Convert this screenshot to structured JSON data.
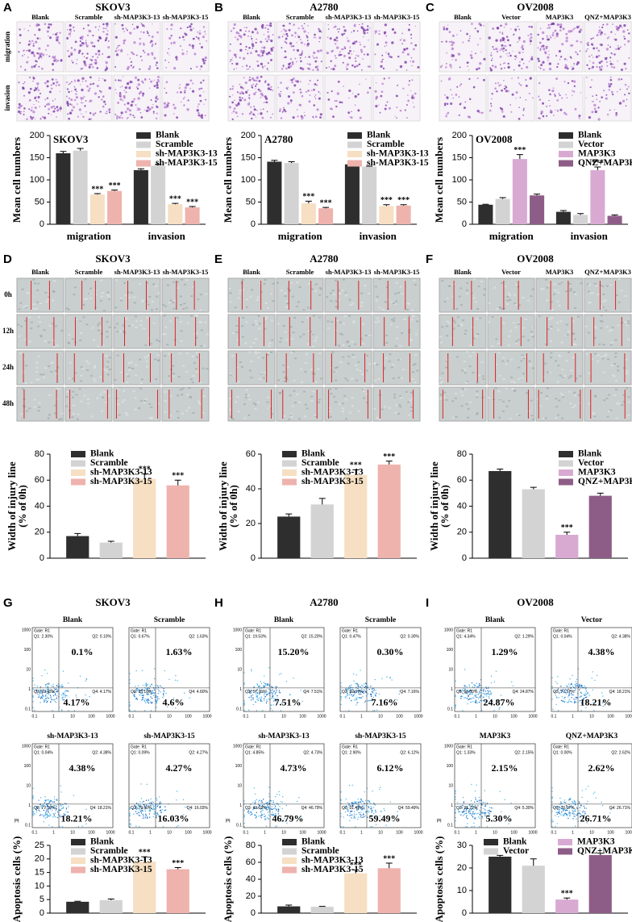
{
  "chart_data": [
    {
      "type": "bar",
      "title": "SKOV3",
      "ylabel": "Mean cell numbers",
      "categories": [
        "migration",
        "invasion"
      ],
      "ylim": [
        0,
        200
      ],
      "yticks": [
        0,
        50,
        100,
        150,
        200
      ],
      "legend": "upper right",
      "series": [
        {
          "name": "Blank",
          "color": "#2e2e2e",
          "values": [
            160,
            122
          ],
          "errors": [
            4,
            3
          ],
          "annotations": [
            null,
            null
          ]
        },
        {
          "name": "Scramble",
          "color": "#d3d3d3",
          "values": [
            166,
            132
          ],
          "errors": [
            5,
            3
          ],
          "annotations": [
            null,
            null
          ]
        },
        {
          "name": "sh-MAP3K3-13",
          "color": "#f6dfc2",
          "values": [
            67,
            45
          ],
          "errors": [
            2,
            2
          ],
          "annotations": [
            "***",
            "***"
          ]
        },
        {
          "name": "sh-MAP3K3-15",
          "color": "#eeb3ad",
          "values": [
            75,
            38
          ],
          "errors": [
            2,
            2
          ],
          "annotations": [
            "***",
            "***"
          ]
        }
      ]
    },
    {
      "type": "bar",
      "title": "A2780",
      "ylabel": "Mean cell numbers",
      "categories": [
        "migration",
        "invasion"
      ],
      "ylim": [
        0,
        200
      ],
      "yticks": [
        0,
        50,
        100,
        150,
        200
      ],
      "legend": "upper right",
      "series": [
        {
          "name": "Blank",
          "color": "#2e2e2e",
          "values": [
            141,
            135
          ],
          "errors": [
            3,
            6
          ],
          "annotations": [
            null,
            null
          ]
        },
        {
          "name": "Scramble",
          "color": "#d3d3d3",
          "values": [
            138,
            130
          ],
          "errors": [
            3,
            1
          ],
          "annotations": [
            null,
            null
          ]
        },
        {
          "name": "sh-MAP3K3-13",
          "color": "#f6dfc2",
          "values": [
            47,
            41
          ],
          "errors": [
            5,
            3
          ],
          "annotations": [
            "***",
            "***"
          ]
        },
        {
          "name": "sh-MAP3K3-15",
          "color": "#eeb3ad",
          "values": [
            36,
            42
          ],
          "errors": [
            2,
            2
          ],
          "annotations": [
            "***",
            "***"
          ]
        }
      ]
    },
    {
      "type": "bar",
      "title": "OV2008",
      "ylabel": "Mean cell numbers",
      "categories": [
        "migration",
        "invasion"
      ],
      "ylim": [
        0,
        200
      ],
      "yticks": [
        0,
        50,
        100,
        150,
        200
      ],
      "legend": "upper right",
      "series": [
        {
          "name": "Blank",
          "color": "#2e2e2e",
          "values": [
            44,
            28
          ],
          "errors": [
            1,
            3
          ],
          "annotations": [
            null,
            null
          ]
        },
        {
          "name": "Vector",
          "color": "#d3d3d3",
          "values": [
            57,
            21
          ],
          "errors": [
            3,
            3
          ],
          "annotations": [
            null,
            null
          ]
        },
        {
          "name": "MAP3K3",
          "color": "#d8aad2",
          "values": [
            147,
            122
          ],
          "errors": [
            10,
            7
          ],
          "annotations": [
            "***",
            "***"
          ]
        },
        {
          "name": "QNZ+MAP3K3",
          "color": "#8e5d87",
          "values": [
            65,
            19
          ],
          "errors": [
            3,
            2
          ],
          "annotations": [
            null,
            null
          ]
        }
      ]
    },
    {
      "type": "bar",
      "ylabel": [
        "Width of injury line",
        "(% of 0h)"
      ],
      "categories": [
        null
      ],
      "ylim": [
        0,
        80
      ],
      "yticks": [
        0,
        20,
        40,
        60,
        80
      ],
      "legend": "upper left",
      "series": [
        {
          "name": "Blank",
          "color": "#2e2e2e",
          "values": [
            17
          ],
          "errors": [
            2
          ],
          "annotations": [
            null
          ]
        },
        {
          "name": "Scramble",
          "color": "#d3d3d3",
          "values": [
            12
          ],
          "errors": [
            1
          ],
          "annotations": [
            null
          ]
        },
        {
          "name": "sh-MAP3K3-13",
          "color": "#f6dfc2",
          "values": [
            61
          ],
          "errors": [
            4
          ],
          "annotations": [
            "***"
          ]
        },
        {
          "name": "sh-MAP3K3-15",
          "color": "#eeb3ad",
          "values": [
            56
          ],
          "errors": [
            4
          ],
          "annotations": [
            "***"
          ]
        }
      ]
    },
    {
      "type": "bar",
      "ylabel": [
        "Width of injury line",
        "(% of 0h)"
      ],
      "categories": [
        null
      ],
      "ylim": [
        0,
        60
      ],
      "yticks": [
        0,
        20,
        40,
        60
      ],
      "legend": "upper left",
      "series": [
        {
          "name": "Blank",
          "color": "#2e2e2e",
          "values": [
            24
          ],
          "errors": [
            1.5
          ],
          "annotations": [
            null
          ]
        },
        {
          "name": "Scramble",
          "color": "#d3d3d3",
          "values": [
            31
          ],
          "errors": [
            3.5
          ],
          "annotations": [
            null
          ]
        },
        {
          "name": "sh-MAP3K3-13",
          "color": "#f6dfc2",
          "values": [
            48
          ],
          "errors": [
            3
          ],
          "annotations": [
            "***"
          ]
        },
        {
          "name": "sh-MAP3K3-15",
          "color": "#eeb3ad",
          "values": [
            54
          ],
          "errors": [
            2
          ],
          "annotations": [
            "***"
          ]
        }
      ]
    },
    {
      "type": "bar",
      "ylabel": [
        "Width of injury line",
        "(% of 0h)"
      ],
      "categories": [
        null
      ],
      "ylim": [
        0,
        80
      ],
      "yticks": [
        0,
        20,
        40,
        60,
        80
      ],
      "legend": "upper right",
      "series": [
        {
          "name": "Blank",
          "color": "#2e2e2e",
          "values": [
            67
          ],
          "errors": [
            1.5
          ],
          "annotations": [
            null
          ]
        },
        {
          "name": "Vector",
          "color": "#d3d3d3",
          "values": [
            53
          ],
          "errors": [
            1.5
          ],
          "annotations": [
            null
          ]
        },
        {
          "name": "MAP3K3",
          "color": "#d8aad2",
          "values": [
            18
          ],
          "errors": [
            2
          ],
          "annotations": [
            "***"
          ]
        },
        {
          "name": "QNZ+MAP3K3",
          "color": "#8e5d87",
          "values": [
            48
          ],
          "errors": [
            2
          ],
          "annotations": [
            null
          ]
        }
      ]
    },
    {
      "type": "bar",
      "ylabel": "Apoptosis cells (%)",
      "categories": [
        null
      ],
      "ylim": [
        0,
        25
      ],
      "yticks": [
        0,
        5,
        10,
        15,
        20,
        25
      ],
      "legend": "upper left",
      "series": [
        {
          "name": "Blank",
          "color": "#2e2e2e",
          "values": [
            4.2
          ],
          "errors": [
            0.2
          ],
          "annotations": [
            null
          ]
        },
        {
          "name": "Scramble",
          "color": "#d3d3d3",
          "values": [
            4.8
          ],
          "errors": [
            0.4
          ],
          "annotations": [
            null
          ]
        },
        {
          "name": "sh-MAP3K3-13",
          "color": "#f6dfc2",
          "values": [
            19
          ],
          "errors": [
            1.8
          ],
          "annotations": [
            "***"
          ]
        },
        {
          "name": "sh-MAP3K3-15",
          "color": "#eeb3ad",
          "values": [
            16.2
          ],
          "errors": [
            0.6
          ],
          "annotations": [
            "***"
          ]
        }
      ]
    },
    {
      "type": "bar",
      "ylabel": "Apoptosis cells (%)",
      "categories": [
        null
      ],
      "ylim": [
        0,
        80
      ],
      "yticks": [
        0,
        20,
        40,
        60,
        80
      ],
      "legend": "upper left",
      "series": [
        {
          "name": "Blank",
          "color": "#2e2e2e",
          "values": [
            8
          ],
          "errors": [
            1.5
          ],
          "annotations": [
            null
          ]
        },
        {
          "name": "Scramble",
          "color": "#d3d3d3",
          "values": [
            7.5
          ],
          "errors": [
            0.5
          ],
          "annotations": [
            null
          ]
        },
        {
          "name": "sh-MAP3K3-13",
          "color": "#f6dfc2",
          "values": [
            47
          ],
          "errors": [
            4
          ],
          "annotations": [
            "***"
          ]
        },
        {
          "name": "sh-MAP3K3-15",
          "color": "#eeb3ad",
          "values": [
            53
          ],
          "errors": [
            6
          ],
          "annotations": [
            "***"
          ]
        }
      ]
    },
    {
      "type": "bar",
      "ylabel": "Apoptosis cells (%)",
      "categories": [
        null
      ],
      "ylim": [
        0,
        30
      ],
      "yticks": [
        0,
        10,
        20,
        30
      ],
      "legend": "upper center",
      "legend_columns": 2,
      "series": [
        {
          "name": "Blank",
          "color": "#2e2e2e",
          "values": [
            25
          ],
          "errors": [
            0.6
          ],
          "annotations": [
            null
          ]
        },
        {
          "name": "Vector",
          "color": "#d3d3d3",
          "values": [
            21
          ],
          "errors": [
            3
          ],
          "annotations": [
            null
          ]
        },
        {
          "name": "MAP3K3",
          "color": "#d8aad2",
          "values": [
            6
          ],
          "errors": [
            0.7
          ],
          "annotations": [
            "***"
          ]
        },
        {
          "name": "QNZ+MAP3K3",
          "color": "#8e5d87",
          "values": [
            25.7
          ],
          "errors": [
            0.8
          ],
          "annotations": [
            null
          ]
        }
      ]
    }
  ],
  "panels": [
    {
      "letter": "A",
      "title": "SKOV3",
      "columns": [
        "Blank",
        "Scramble",
        "sh-MAP3K3-13",
        "sh-MAP3K3-15"
      ],
      "rows": [
        "migration",
        "invasion"
      ]
    },
    {
      "letter": "B",
      "title": "A2780",
      "columns": [
        "Blank",
        "Scramble",
        "sh-MAP3K3-13",
        "sh-MAP3K3-15"
      ]
    },
    {
      "letter": "C",
      "title": "OV2008",
      "columns": [
        "Blank",
        "Vector",
        "MAP3K3",
        "QNZ+MAP3K3"
      ]
    },
    {
      "letter": "D",
      "title": "SKOV3",
      "columns": [
        "Blank",
        "Scramble",
        "sh-MAP3K3-13",
        "sh-MAP3K3-15"
      ],
      "rows": [
        "0h",
        "12h",
        "24h",
        "48h"
      ]
    },
    {
      "letter": "E",
      "title": "A2780",
      "columns": [
        "Blank",
        "Scramble",
        "sh-MAP3K3-13",
        "sh-MAP3K3-15"
      ]
    },
    {
      "letter": "F",
      "title": "OV2008",
      "columns": [
        "Blank",
        "Vector",
        "MAP3K3",
        "QNZ+MAP3K3"
      ]
    },
    {
      "letter": "G",
      "title": "SKOV3",
      "plots": [
        {
          "name": "Blank",
          "q1": "Q1: 2.30%",
          "q2": "Q2: 0.10%",
          "q3": "Q3: 93.43%",
          "q4": "Q4: 4.17%",
          "upper": "0.1%",
          "lower": "4.17%"
        },
        {
          "name": "Scramble",
          "q1": "Q1: 0.67%",
          "q2": "Q2: 1.63%",
          "q3": "Q3: 93.10%",
          "q4": "Q4: 4.60%",
          "upper": "1.63%",
          "lower": "4.6%"
        },
        {
          "name": "sh-MAP3K3-13",
          "q1": "Q1: 0.04%",
          "q2": "Q2: 4.38%",
          "q3": "Q3: 77.37%",
          "q4": "Q4: 18.21%",
          "upper": "4.38%",
          "lower": "18.21%"
        },
        {
          "name": "sh-MAP3K3-15",
          "q1": "Q1: 0.09%",
          "q2": "Q2: 4.27%",
          "q3": "Q3: 79.60%",
          "q4": "Q4: 16.03%",
          "upper": "4.27%",
          "lower": "16.03%"
        }
      ]
    },
    {
      "letter": "H",
      "title": "A2780",
      "plots": [
        {
          "name": "Blank",
          "q1": "Q1: 19.53%",
          "q2": "Q2: 15.20%",
          "q3": "Q3: 57.76%",
          "q4": "Q4: 7.51%",
          "upper": "15.20%",
          "lower": "7.51%"
        },
        {
          "name": "Scramble",
          "q1": "Q1: 0.47%",
          "q2": "Q2: 0.30%",
          "q3": "Q3: 92.07%",
          "q4": "Q4: 7.16%",
          "upper": "0.30%",
          "lower": "7.16%"
        },
        {
          "name": "sh-MAP3K3-13",
          "q1": "Q1: 4.85%",
          "q2": "Q2: 4.73%",
          "q3": "Q3: 43.63%",
          "q4": "Q4: 46.79%",
          "upper": "4.73%",
          "lower": "46.79%"
        },
        {
          "name": "sh-MAP3K3-15",
          "q1": "Q1: 2.90%",
          "q2": "Q2: 6.12%",
          "q3": "Q3: 31.49%",
          "q4": "Q4: 59.49%",
          "upper": "6.12%",
          "lower": "59.49%"
        }
      ]
    },
    {
      "letter": "I",
      "title": "OV2008",
      "plots": [
        {
          "name": "Blank",
          "q1": "Q1: 4.34%",
          "q2": "Q2: 1.29%",
          "q3": "Q3: 69.50%",
          "q4": "Q4: 24.87%",
          "upper": "1.29%",
          "lower": "24.87%"
        },
        {
          "name": "Vector",
          "q1": "Q1: 0.04%",
          "q2": "Q2: 4.38%",
          "q3": "Q3: 77.37%",
          "q4": "Q4: 18.21%",
          "upper": "4.38%",
          "lower": "18.21%"
        },
        {
          "name": "MAP3K3",
          "q1": "Q1: 1.33%",
          "q2": "Q2: 2.15%",
          "q3": "Q3: 91.22%",
          "q4": "Q4: 5.30%",
          "upper": "2.15%",
          "lower": "5.30%"
        },
        {
          "name": "QNZ+MAP3K3",
          "q1": "Q1: 0.00%",
          "q2": "Q2: 2.62%",
          "q3": "Q3: 70.67%",
          "q4": "Q4: 26.71%",
          "upper": "2.62%",
          "lower": "26.71%"
        }
      ]
    }
  ],
  "flow_axis": {
    "gate": "Gate: R1",
    "ylabel": "PI",
    "ticks": [
      "0.1",
      "1",
      "10",
      "100",
      "1000"
    ]
  }
}
